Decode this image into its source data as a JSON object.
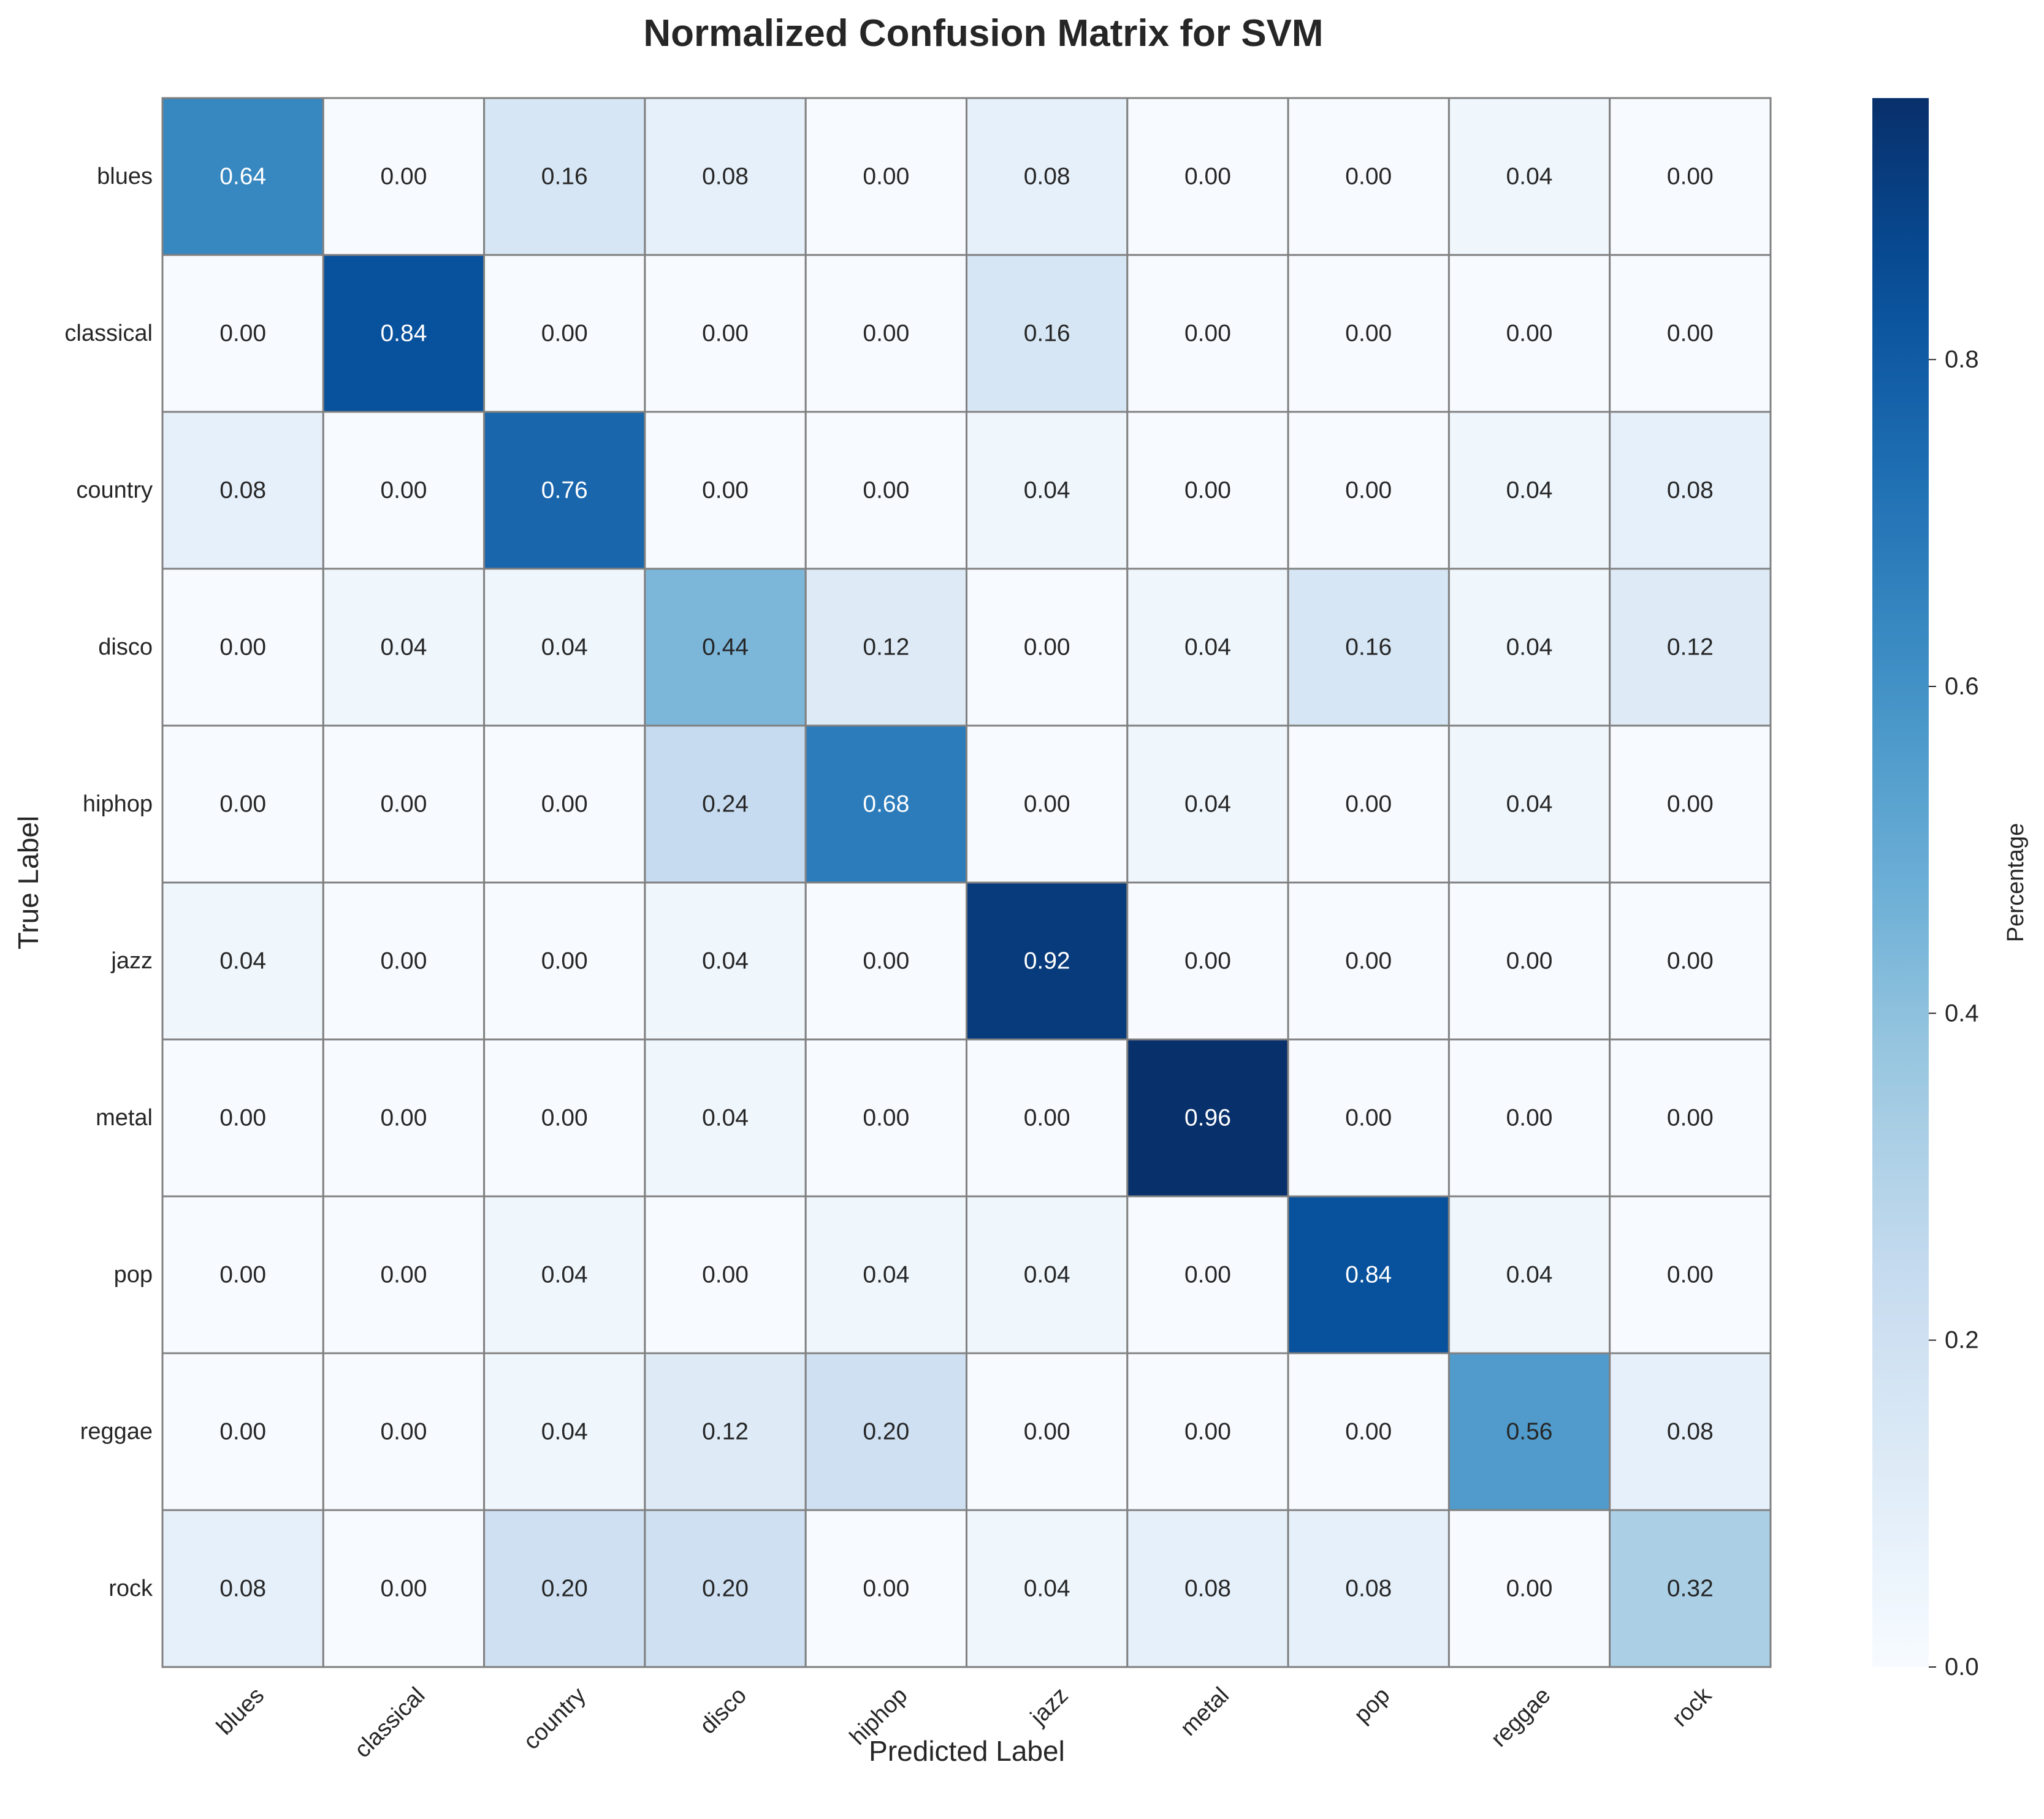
{
  "chart_data": {
    "type": "heatmap",
    "title": "Normalized Confusion Matrix for SVM",
    "xlabel": "Predicted Label",
    "ylabel": "True Label",
    "x_categories": [
      "blues",
      "classical",
      "country",
      "disco",
      "hiphop",
      "jazz",
      "metal",
      "pop",
      "reggae",
      "rock"
    ],
    "y_categories": [
      "blues",
      "classical",
      "country",
      "disco",
      "hiphop",
      "jazz",
      "metal",
      "pop",
      "reggae",
      "rock"
    ],
    "values": [
      [
        0.64,
        0.0,
        0.16,
        0.08,
        0.0,
        0.08,
        0.0,
        0.0,
        0.04,
        0.0
      ],
      [
        0.0,
        0.84,
        0.0,
        0.0,
        0.0,
        0.16,
        0.0,
        0.0,
        0.0,
        0.0
      ],
      [
        0.08,
        0.0,
        0.76,
        0.0,
        0.0,
        0.04,
        0.0,
        0.0,
        0.04,
        0.08
      ],
      [
        0.0,
        0.04,
        0.04,
        0.44,
        0.12,
        0.0,
        0.04,
        0.16,
        0.04,
        0.12
      ],
      [
        0.0,
        0.0,
        0.0,
        0.24,
        0.68,
        0.0,
        0.04,
        0.0,
        0.04,
        0.0
      ],
      [
        0.04,
        0.0,
        0.0,
        0.04,
        0.0,
        0.92,
        0.0,
        0.0,
        0.0,
        0.0
      ],
      [
        0.0,
        0.0,
        0.0,
        0.04,
        0.0,
        0.0,
        0.96,
        0.0,
        0.0,
        0.0
      ],
      [
        0.0,
        0.0,
        0.04,
        0.0,
        0.04,
        0.04,
        0.0,
        0.84,
        0.04,
        0.0
      ],
      [
        0.0,
        0.0,
        0.04,
        0.12,
        0.2,
        0.0,
        0.0,
        0.0,
        0.56,
        0.08
      ],
      [
        0.08,
        0.0,
        0.2,
        0.2,
        0.0,
        0.04,
        0.08,
        0.08,
        0.0,
        0.32
      ]
    ],
    "value_format": "0.00",
    "colormap": "Blues",
    "vmin": 0.0,
    "vmax": 0.96,
    "colorbar": {
      "label": "Percentage",
      "ticks": [
        0.0,
        0.2,
        0.4,
        0.6,
        0.8
      ],
      "tick_labels": [
        "0.0",
        "0.2",
        "0.4",
        "0.6",
        "0.8"
      ]
    },
    "cell_border_color": "#808080",
    "grid": false
  }
}
